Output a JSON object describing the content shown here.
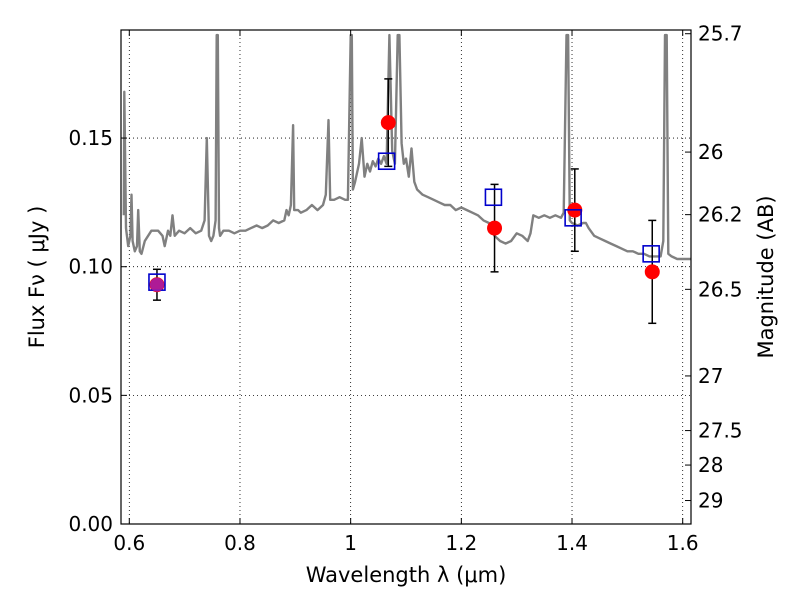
{
  "chart_data": {
    "type": "scatter",
    "xlabel": "Wavelength  λ (μm)",
    "ylabel": "Flux  Fν  ( μJy )",
    "y2label": "Magnitude (AB)",
    "xlim": [
      0.585,
      1.615
    ],
    "ylim": [
      0.0,
      0.192
    ],
    "grid": true,
    "x_ticks": [
      0.6,
      0.8,
      1.0,
      1.2,
      1.4,
      1.6
    ],
    "x_tick_labels": [
      "0.6",
      "0.8",
      "1",
      "1.2",
      "1.4",
      "1.6"
    ],
    "y_ticks": [
      0.0,
      0.05,
      0.1,
      0.15
    ],
    "y_tick_labels": [
      "0.00",
      "0.05",
      "0.10",
      "0.15"
    ],
    "y2_ticks": [
      25.7,
      26,
      26.2,
      26.5,
      27,
      27.5,
      28,
      29
    ],
    "y2_tick_labels": [
      "25.7",
      "26",
      "26.2",
      "26.5",
      "27",
      "27.5",
      "28",
      "29"
    ],
    "model_spectrum": {
      "color": "#808080",
      "points": [
        [
          0.59,
          0.12
        ],
        [
          0.591,
          0.168
        ],
        [
          0.594,
          0.115
        ],
        [
          0.598,
          0.108
        ],
        [
          0.602,
          0.112
        ],
        [
          0.604,
          0.128
        ],
        [
          0.606,
          0.11
        ],
        [
          0.61,
          0.106
        ],
        [
          0.614,
          0.108
        ],
        [
          0.616,
          0.122
        ],
        [
          0.619,
          0.106
        ],
        [
          0.622,
          0.105
        ],
        [
          0.628,
          0.11
        ],
        [
          0.64,
          0.114
        ],
        [
          0.652,
          0.114
        ],
        [
          0.66,
          0.112
        ],
        [
          0.664,
          0.108
        ],
        [
          0.67,
          0.114
        ],
        [
          0.674,
          0.112
        ],
        [
          0.678,
          0.12
        ],
        [
          0.682,
          0.112
        ],
        [
          0.69,
          0.114
        ],
        [
          0.7,
          0.113
        ],
        [
          0.71,
          0.115
        ],
        [
          0.72,
          0.113
        ],
        [
          0.73,
          0.114
        ],
        [
          0.736,
          0.118
        ],
        [
          0.74,
          0.15
        ],
        [
          0.744,
          0.112
        ],
        [
          0.748,
          0.11
        ],
        [
          0.752,
          0.112
        ],
        [
          0.756,
          0.118
        ],
        [
          0.758,
          0.19
        ],
        [
          0.76,
          0.19
        ],
        [
          0.762,
          0.115
        ],
        [
          0.764,
          0.112
        ],
        [
          0.77,
          0.114
        ],
        [
          0.78,
          0.114
        ],
        [
          0.79,
          0.113
        ],
        [
          0.8,
          0.114
        ],
        [
          0.81,
          0.114
        ],
        [
          0.82,
          0.115
        ],
        [
          0.83,
          0.116
        ],
        [
          0.84,
          0.115
        ],
        [
          0.85,
          0.116
        ],
        [
          0.86,
          0.118
        ],
        [
          0.87,
          0.117
        ],
        [
          0.88,
          0.118
        ],
        [
          0.884,
          0.122
        ],
        [
          0.888,
          0.12
        ],
        [
          0.892,
          0.124
        ],
        [
          0.896,
          0.155
        ],
        [
          0.898,
          0.122
        ],
        [
          0.905,
          0.122
        ],
        [
          0.91,
          0.121
        ],
        [
          0.92,
          0.122
        ],
        [
          0.93,
          0.124
        ],
        [
          0.94,
          0.122
        ],
        [
          0.95,
          0.124
        ],
        [
          0.955,
          0.128
        ],
        [
          0.96,
          0.157
        ],
        [
          0.963,
          0.126
        ],
        [
          0.97,
          0.126
        ],
        [
          0.98,
          0.127
        ],
        [
          0.99,
          0.126
        ],
        [
          0.995,
          0.126
        ],
        [
          1.0,
          0.19
        ],
        [
          1.002,
          0.19
        ],
        [
          1.004,
          0.13
        ],
        [
          1.008,
          0.133
        ],
        [
          1.015,
          0.14
        ],
        [
          1.02,
          0.15
        ],
        [
          1.025,
          0.135
        ],
        [
          1.03,
          0.14
        ],
        [
          1.035,
          0.137
        ],
        [
          1.04,
          0.141
        ],
        [
          1.045,
          0.139
        ],
        [
          1.05,
          0.142
        ],
        [
          1.055,
          0.14
        ],
        [
          1.06,
          0.143
        ],
        [
          1.065,
          0.14
        ],
        [
          1.07,
          0.19
        ],
        [
          1.075,
          0.145
        ],
        [
          1.08,
          0.14
        ],
        [
          1.085,
          0.19
        ],
        [
          1.088,
          0.19
        ],
        [
          1.092,
          0.148
        ],
        [
          1.096,
          0.14
        ],
        [
          1.1,
          0.142
        ],
        [
          1.105,
          0.135
        ],
        [
          1.11,
          0.146
        ],
        [
          1.115,
          0.133
        ],
        [
          1.12,
          0.13
        ],
        [
          1.13,
          0.128
        ],
        [
          1.14,
          0.127
        ],
        [
          1.15,
          0.126
        ],
        [
          1.16,
          0.125
        ],
        [
          1.17,
          0.124
        ],
        [
          1.18,
          0.124
        ],
        [
          1.19,
          0.122
        ],
        [
          1.2,
          0.123
        ],
        [
          1.21,
          0.122
        ],
        [
          1.22,
          0.121
        ],
        [
          1.23,
          0.12
        ],
        [
          1.24,
          0.118
        ],
        [
          1.25,
          0.117
        ],
        [
          1.255,
          0.114
        ],
        [
          1.26,
          0.112
        ],
        [
          1.27,
          0.11
        ],
        [
          1.28,
          0.109
        ],
        [
          1.29,
          0.11
        ],
        [
          1.3,
          0.113
        ],
        [
          1.31,
          0.112
        ],
        [
          1.32,
          0.11
        ],
        [
          1.325,
          0.113
        ],
        [
          1.33,
          0.12
        ],
        [
          1.34,
          0.119
        ],
        [
          1.35,
          0.12
        ],
        [
          1.36,
          0.119
        ],
        [
          1.37,
          0.12
        ],
        [
          1.38,
          0.119
        ],
        [
          1.385,
          0.121
        ],
        [
          1.39,
          0.19
        ],
        [
          1.393,
          0.19
        ],
        [
          1.396,
          0.118
        ],
        [
          1.4,
          0.117
        ],
        [
          1.41,
          0.116
        ],
        [
          1.42,
          0.117
        ],
        [
          1.425,
          0.117
        ],
        [
          1.43,
          0.115
        ],
        [
          1.44,
          0.112
        ],
        [
          1.45,
          0.111
        ],
        [
          1.46,
          0.11
        ],
        [
          1.47,
          0.109
        ],
        [
          1.48,
          0.108
        ],
        [
          1.49,
          0.107
        ],
        [
          1.5,
          0.106
        ],
        [
          1.51,
          0.106
        ],
        [
          1.52,
          0.105
        ],
        [
          1.53,
          0.105
        ],
        [
          1.54,
          0.104
        ],
        [
          1.55,
          0.104
        ],
        [
          1.56,
          0.104
        ],
        [
          1.565,
          0.11
        ],
        [
          1.568,
          0.19
        ],
        [
          1.571,
          0.19
        ],
        [
          1.574,
          0.105
        ],
        [
          1.58,
          0.104
        ],
        [
          1.59,
          0.103
        ],
        [
          1.6,
          0.103
        ],
        [
          1.615,
          0.103
        ]
      ]
    },
    "observed": {
      "color": "#ff0000",
      "points": [
        {
          "x": 0.65,
          "y": 0.093,
          "err": 0.006
        },
        {
          "x": 1.068,
          "y": 0.156,
          "err": 0.017
        },
        {
          "x": 1.26,
          "y": 0.115,
          "err": 0.017
        },
        {
          "x": 1.405,
          "y": 0.122,
          "err": 0.016
        },
        {
          "x": 1.545,
          "y": 0.098,
          "err": 0.02
        }
      ]
    },
    "model_bands": {
      "color": "#0000cc",
      "points": [
        {
          "x": 0.65,
          "y": 0.094
        },
        {
          "x": 1.065,
          "y": 0.141
        },
        {
          "x": 1.258,
          "y": 0.127
        },
        {
          "x": 1.402,
          "y": 0.119
        },
        {
          "x": 1.543,
          "y": 0.105
        }
      ]
    }
  }
}
